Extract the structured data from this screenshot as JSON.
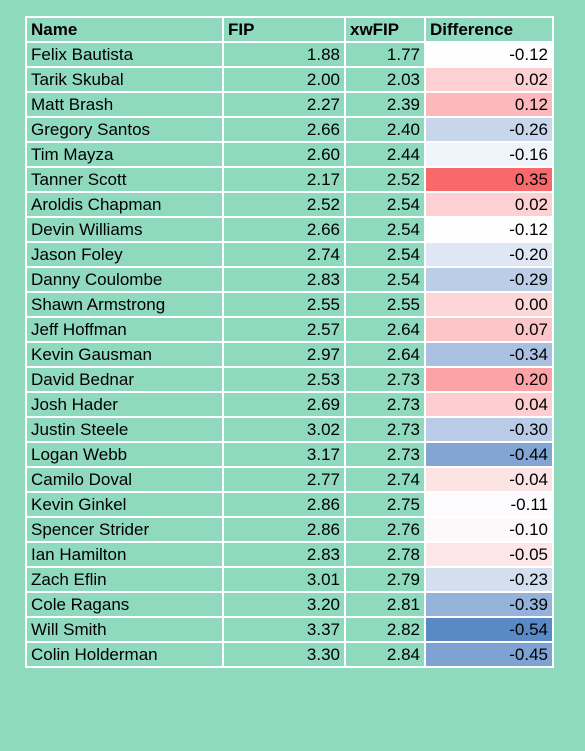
{
  "table": {
    "headers": [
      "Name",
      "FIP",
      "xwFIP",
      "Difference"
    ],
    "rows": [
      {
        "name": "Felix Bautista",
        "fip": "1.88",
        "xwfip": "1.77",
        "diff": "-0.12",
        "diff_color": "#fefeff"
      },
      {
        "name": "Tarik Skubal",
        "fip": "2.00",
        "xwfip": "2.03",
        "diff": "0.02",
        "diff_color": "#fdd1d3"
      },
      {
        "name": "Matt Brash",
        "fip": "2.27",
        "xwfip": "2.39",
        "diff": "0.12",
        "diff_color": "#fcb8bb"
      },
      {
        "name": "Gregory Santos",
        "fip": "2.66",
        "xwfip": "2.40",
        "diff": "-0.26",
        "diff_color": "#c8d6ec"
      },
      {
        "name": "Tim Mayza",
        "fip": "2.60",
        "xwfip": "2.44",
        "diff": "-0.16",
        "diff_color": "#eff3fa"
      },
      {
        "name": "Tanner Scott",
        "fip": "2.17",
        "xwfip": "2.52",
        "diff": "0.35",
        "diff_color": "#f8696b"
      },
      {
        "name": "Aroldis Chapman",
        "fip": "2.52",
        "xwfip": "2.54",
        "diff": "0.02",
        "diff_color": "#fdd1d3"
      },
      {
        "name": "Devin Williams",
        "fip": "2.66",
        "xwfip": "2.54",
        "diff": "-0.12",
        "diff_color": "#fefeff"
      },
      {
        "name": "Jason Foley",
        "fip": "2.74",
        "xwfip": "2.54",
        "diff": "-0.20",
        "diff_color": "#dfe7f4"
      },
      {
        "name": "Danny Coulombe",
        "fip": "2.83",
        "xwfip": "2.54",
        "diff": "-0.29",
        "diff_color": "#bccde8"
      },
      {
        "name": "Shawn Armstrong",
        "fip": "2.55",
        "xwfip": "2.55",
        "diff": "0.00",
        "diff_color": "#fdd6d8"
      },
      {
        "name": "Jeff Hoffman",
        "fip": "2.57",
        "xwfip": "2.64",
        "diff": "0.07",
        "diff_color": "#fcc5c8"
      },
      {
        "name": "Kevin Gausman",
        "fip": "2.97",
        "xwfip": "2.64",
        "diff": "-0.34",
        "diff_color": "#a9c0e1"
      },
      {
        "name": "David Bednar",
        "fip": "2.53",
        "xwfip": "2.73",
        "diff": "0.20",
        "diff_color": "#fba3a6"
      },
      {
        "name": "Josh Hader",
        "fip": "2.69",
        "xwfip": "2.73",
        "diff": "0.04",
        "diff_color": "#fdcdcf"
      },
      {
        "name": "Justin Steele",
        "fip": "3.02",
        "xwfip": "2.73",
        "diff": "-0.30",
        "diff_color": "#b9cbe6"
      },
      {
        "name": "Logan Webb",
        "fip": "3.17",
        "xwfip": "2.73",
        "diff": "-0.44",
        "diff_color": "#82a5d4"
      },
      {
        "name": "Camilo Doval",
        "fip": "2.77",
        "xwfip": "2.74",
        "diff": "-0.04",
        "diff_color": "#fce4e5"
      },
      {
        "name": "Kevin Ginkel",
        "fip": "2.86",
        "xwfip": "2.75",
        "diff": "-0.11",
        "diff_color": "#fcfcfe"
      },
      {
        "name": "Spencer Strider",
        "fip": "2.86",
        "xwfip": "2.76",
        "diff": "-0.10",
        "diff_color": "#fdf9fa"
      },
      {
        "name": "Ian Hamilton",
        "fip": "2.83",
        "xwfip": "2.78",
        "diff": "-0.05",
        "diff_color": "#fce6e7"
      },
      {
        "name": "Zach Eflin",
        "fip": "3.01",
        "xwfip": "2.79",
        "diff": "-0.23",
        "diff_color": "#d3deef"
      },
      {
        "name": "Cole Ragans",
        "fip": "3.20",
        "xwfip": "2.81",
        "diff": "-0.39",
        "diff_color": "#95b3da"
      },
      {
        "name": "Will Smith",
        "fip": "3.37",
        "xwfip": "2.82",
        "diff": "-0.54",
        "diff_color": "#5a8ac6"
      },
      {
        "name": "Colin Holderman",
        "fip": "3.30",
        "xwfip": "2.84",
        "diff": "-0.45",
        "diff_color": "#7ea2d2"
      }
    ]
  }
}
